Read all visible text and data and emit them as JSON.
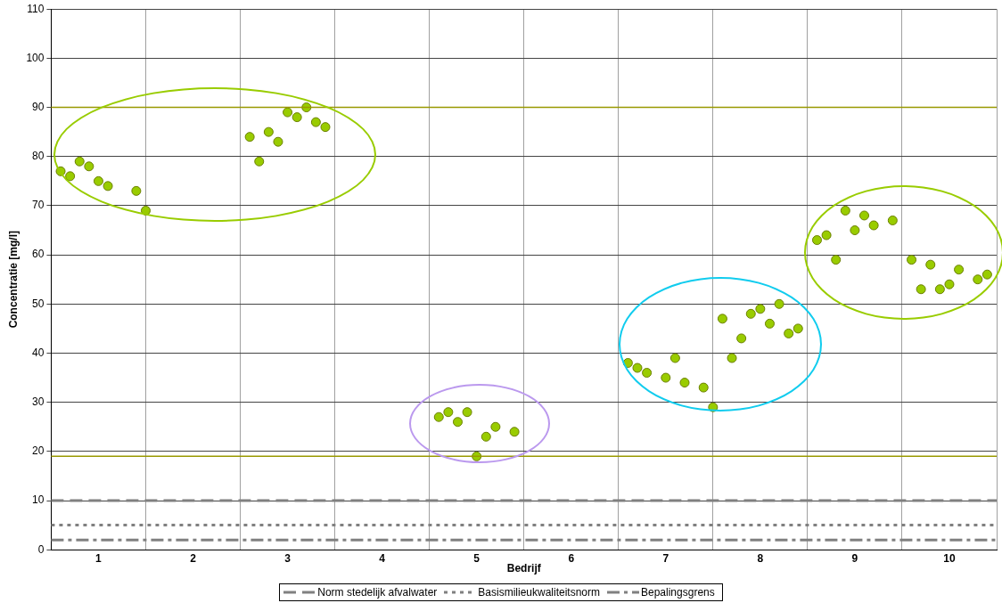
{
  "chart_data": {
    "type": "scatter",
    "xlabel": "Bedrijf",
    "ylabel": "Concentratie [mg/l]",
    "xlim": [
      0.5,
      10.5
    ],
    "xticks": [
      {
        "value": 0.5,
        "label": null
      },
      1,
      {
        "value": 1.5,
        "label": null
      },
      2,
      {
        "value": 2.5,
        "label": null
      },
      3,
      {
        "value": 3.5,
        "label": null
      },
      4,
      {
        "value": 4.5,
        "label": null
      },
      5,
      {
        "value": 5.5,
        "label": null
      },
      6,
      {
        "value": 6.5,
        "label": null
      },
      7,
      {
        "value": 7.5,
        "label": null
      },
      8,
      {
        "value": 8.5,
        "label": null
      },
      9,
      {
        "value": 9.5,
        "label": null
      },
      10,
      {
        "value": 10.5,
        "label": null
      }
    ],
    "ylim": [
      0,
      110
    ],
    "yticks": [
      0,
      10,
      20,
      30,
      40,
      50,
      60,
      70,
      80,
      90,
      100,
      110
    ],
    "grid": true,
    "marker": "circle",
    "legend": "bottom",
    "series": [
      {
        "color": "#99cc00",
        "x": [
          0.6,
          0.7,
          0.8,
          0.9,
          1.0,
          1.1,
          1.4,
          1.5,
          2.6,
          2.7,
          2.8,
          2.9,
          3.0,
          3.1,
          3.2,
          3.3,
          3.4,
          4.6,
          4.7,
          4.8,
          4.9,
          5.0,
          5.1,
          5.2,
          5.4,
          6.6,
          6.7,
          6.8,
          7.0,
          7.1,
          7.2,
          7.4,
          7.5,
          7.6,
          7.7,
          7.8,
          7.9,
          8.0,
          8.1,
          8.2,
          8.3,
          8.4,
          8.6,
          8.7,
          8.8,
          8.9,
          9.0,
          9.1,
          9.2,
          9.4,
          9.6,
          9.7,
          9.8,
          9.9,
          10.0,
          10.1,
          10.3,
          10.4
        ],
        "values": [
          77,
          76,
          79,
          78,
          75,
          74,
          73,
          69,
          84,
          79,
          85,
          83,
          89,
          88,
          90,
          87,
          86,
          27,
          28,
          26,
          28,
          19,
          23,
          25,
          24,
          38,
          37,
          36,
          35,
          39,
          34,
          33,
          29,
          47,
          39,
          43,
          48,
          49,
          46,
          50,
          44,
          45,
          63,
          64,
          59,
          69,
          65,
          68,
          66,
          67,
          59,
          53,
          58,
          53,
          54,
          57,
          55,
          56
        ]
      }
    ],
    "ref_lines": [
      {
        "axis": "y",
        "value": 90,
        "color": "#999900",
        "line_style": "solid"
      },
      {
        "axis": "y",
        "value": 19,
        "color": "#999900",
        "line_style": "solid"
      },
      {
        "axis": "y",
        "value": 10,
        "label": "Norm stedelijk afvalwater",
        "color": "#808080",
        "line_style": "dashed"
      },
      {
        "axis": "y",
        "value": 5,
        "label": "Basismilieukwaliteitsnorm",
        "color": "#808080",
        "line_style": "dotted"
      },
      {
        "axis": "y",
        "value": 2,
        "label": "Bepalingsgrens",
        "color": "#808080",
        "line_style": "dashdot"
      }
    ]
  }
}
